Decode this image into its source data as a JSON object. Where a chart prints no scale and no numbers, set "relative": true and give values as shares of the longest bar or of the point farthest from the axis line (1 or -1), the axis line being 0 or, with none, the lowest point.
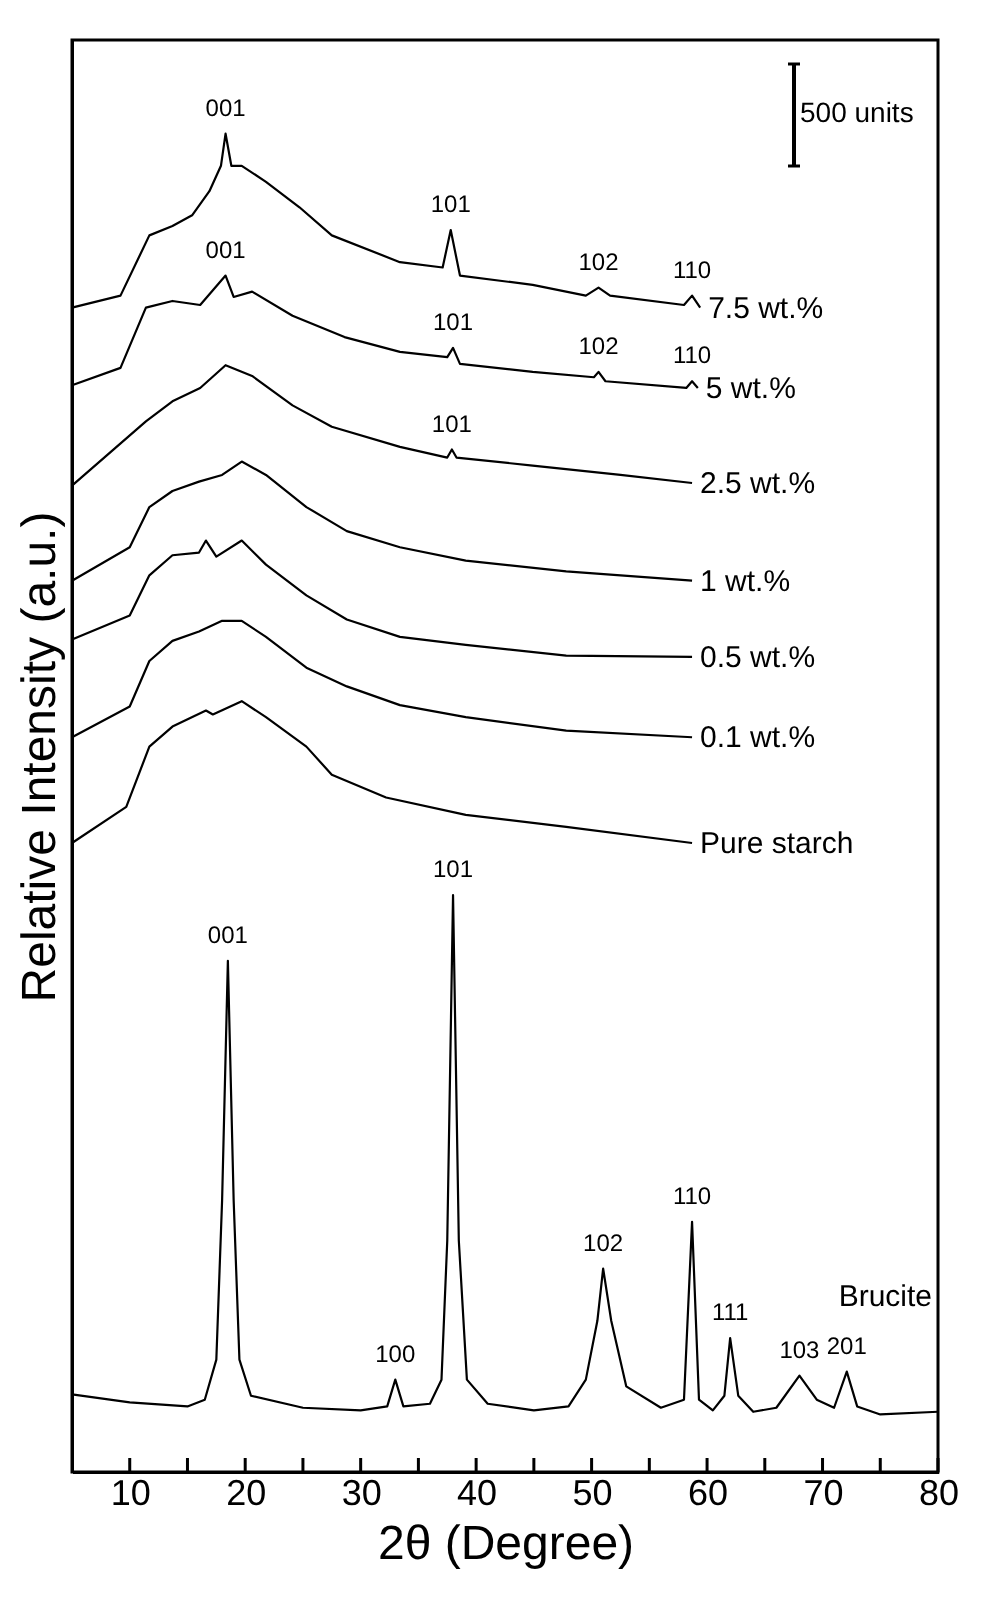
{
  "chart_data": {
    "type": "line",
    "relative": true,
    "xlabel": "2θ (Degree)",
    "ylabel": "Relative Intensity (a.u.)",
    "xlim": [
      5,
      80
    ],
    "xticks": [
      10,
      {
        "value": 15,
        "label": null
      },
      20,
      {
        "value": 25,
        "label": null
      },
      30,
      {
        "value": 35,
        "label": null
      },
      40,
      {
        "value": 45,
        "label": null
      },
      50,
      {
        "value": 55,
        "label": null
      },
      60,
      {
        "value": 65,
        "label": null
      },
      70,
      {
        "value": 75,
        "label": null
      },
      80
    ],
    "tick_labels": "x",
    "grid": false,
    "legend": false,
    "marker": "none",
    "line_style": "solid",
    "series": [
      {
        "name": "7.5 wt.%",
        "color": "#000000",
        "x": [
          5,
          9.2,
          11.7,
          13.7,
          15.4,
          16.9,
          17.9,
          18.3,
          18.8,
          19.7,
          21.8,
          24.7,
          27.5,
          33.4,
          37.1,
          37.8,
          38.6,
          44.9,
          49.5,
          50.6,
          51.6,
          58,
          58.7,
          59.4
        ],
        "values": [
          0.87,
          0.879,
          0.924,
          0.931,
          0.939,
          0.957,
          0.976,
          1,
          0.976,
          0.976,
          0.964,
          0.945,
          0.924,
          0.904,
          0.9,
          0.928,
          0.894,
          0.887,
          0.879,
          0.885,
          0.879,
          0.872,
          0.879,
          0.87
        ]
      },
      {
        "name": "5 wt.%",
        "color": "#000000",
        "x": [
          5,
          9.2,
          11.4,
          13.7,
          16.1,
          18.3,
          19,
          20.6,
          24.1,
          28.6,
          33.4,
          37.5,
          38,
          38.6,
          44.9,
          50.2,
          50.6,
          51.2,
          58.2,
          58.7,
          59.2
        ],
        "values": [
          0.812,
          0.825,
          0.87,
          0.875,
          0.872,
          0.894,
          0.878,
          0.882,
          0.864,
          0.848,
          0.837,
          0.833,
          0.84,
          0.828,
          0.822,
          0.818,
          0.822,
          0.815,
          0.81,
          0.815,
          0.81
        ]
      },
      {
        "name": "2.5 wt.%",
        "color": "#000000",
        "x": [
          5,
          11.4,
          13.7,
          16.1,
          18.3,
          20.6,
          24.1,
          27.5,
          33.4,
          37.5,
          37.9,
          38.3,
          44.9,
          52.5,
          58.7
        ],
        "values": [
          0.737,
          0.785,
          0.8,
          0.81,
          0.827,
          0.819,
          0.797,
          0.781,
          0.766,
          0.758,
          0.764,
          0.758,
          0.752,
          0.745,
          0.739
        ]
      },
      {
        "name": "1 wt.%",
        "color": "#000000",
        "x": [
          5,
          10,
          11.7,
          13.7,
          16,
          18,
          19.7,
          21.8,
          25.3,
          28.8,
          33.4,
          39.1,
          47.8,
          58.7
        ],
        "values": [
          0.666,
          0.691,
          0.721,
          0.733,
          0.74,
          0.745,
          0.755,
          0.745,
          0.721,
          0.703,
          0.691,
          0.681,
          0.673,
          0.666
        ]
      },
      {
        "name": "0.5 wt.%",
        "color": "#000000",
        "x": [
          5,
          10,
          11.7,
          13.7,
          16,
          16.6,
          17.5,
          19.7,
          21.8,
          25.3,
          28.8,
          33.4,
          39.1,
          47.8,
          58.7
        ],
        "values": [
          0.622,
          0.64,
          0.67,
          0.685,
          0.687,
          0.696,
          0.684,
          0.696,
          0.678,
          0.655,
          0.637,
          0.624,
          0.618,
          0.61,
          0.609
        ]
      },
      {
        "name": "0.1 wt.%",
        "color": "#000000",
        "x": [
          5,
          10,
          11.7,
          13.7,
          16,
          18,
          19.7,
          21.8,
          25.3,
          28.8,
          33.4,
          39.1,
          47.8,
          58.7
        ],
        "values": [
          0.549,
          0.572,
          0.606,
          0.621,
          0.628,
          0.636,
          0.636,
          0.624,
          0.601,
          0.587,
          0.573,
          0.564,
          0.554,
          0.549
        ]
      },
      {
        "name": "Pure starch",
        "color": "#000000",
        "x": [
          5,
          9.7,
          11.7,
          13.7,
          16.6,
          17.2,
          19.7,
          21.8,
          25.3,
          27.5,
          32.2,
          39.1,
          47.8,
          58.7
        ],
        "values": [
          0.47,
          0.497,
          0.542,
          0.557,
          0.569,
          0.566,
          0.576,
          0.564,
          0.542,
          0.521,
          0.504,
          0.491,
          0.482,
          0.47
        ]
      },
      {
        "name": "Brucite",
        "color": "#000000",
        "x": [
          5,
          10,
          15,
          16.5,
          17.5,
          18,
          18.5,
          19,
          19.5,
          20.5,
          25,
          30,
          32.3,
          33,
          33.7,
          36,
          37,
          37.5,
          38,
          38.5,
          39.2,
          41,
          45,
          48,
          49.5,
          50.5,
          51,
          51.7,
          53,
          56,
          58,
          58.7,
          59.3,
          60.5,
          61.5,
          62,
          62.7,
          64,
          66,
          68,
          69.5,
          71,
          72.1,
          73,
          75,
          80
        ],
        "values": [
          0.058,
          0.052,
          0.049,
          0.054,
          0.084,
          0.203,
          0.382,
          0.203,
          0.084,
          0.057,
          0.048,
          0.046,
          0.049,
          0.069,
          0.049,
          0.051,
          0.069,
          0.173,
          0.431,
          0.173,
          0.069,
          0.051,
          0.046,
          0.049,
          0.069,
          0.113,
          0.152,
          0.113,
          0.064,
          0.048,
          0.054,
          0.187,
          0.054,
          0.046,
          0.057,
          0.1,
          0.057,
          0.045,
          0.048,
          0.072,
          0.054,
          0.048,
          0.075,
          0.049,
          0.043,
          0.045
        ]
      }
    ],
    "annotations": [
      {
        "text": "001",
        "x": 18.3,
        "y": 1
      },
      {
        "text": "101",
        "x": 37.8,
        "y": 0.928
      },
      {
        "text": "102",
        "x": 50.6,
        "y": 0.885
      },
      {
        "text": "110",
        "x": 58.7,
        "y": 0.879
      },
      {
        "text": "001",
        "x": 18.3,
        "y": 0.894
      },
      {
        "text": "101",
        "x": 38,
        "y": 0.84
      },
      {
        "text": "102",
        "x": 50.6,
        "y": 0.822
      },
      {
        "text": "110",
        "x": 58.7,
        "y": 0.815
      },
      {
        "text": "101",
        "x": 37.9,
        "y": 0.764
      },
      {
        "text": "001",
        "x": 18.5,
        "y": 0.382
      },
      {
        "text": "101",
        "x": 38,
        "y": 0.431
      },
      {
        "text": "100",
        "x": 33,
        "y": 0.069
      },
      {
        "text": "102",
        "x": 51,
        "y": 0.152
      },
      {
        "text": "110",
        "x": 58.7,
        "y": 0.187
      },
      {
        "text": "111",
        "x": 62,
        "y": 0.1
      },
      {
        "text": "103",
        "x": 68,
        "y": 0.072
      },
      {
        "text": "201",
        "x": 72.1,
        "y": 0.075
      },
      "500 units"
    ]
  }
}
